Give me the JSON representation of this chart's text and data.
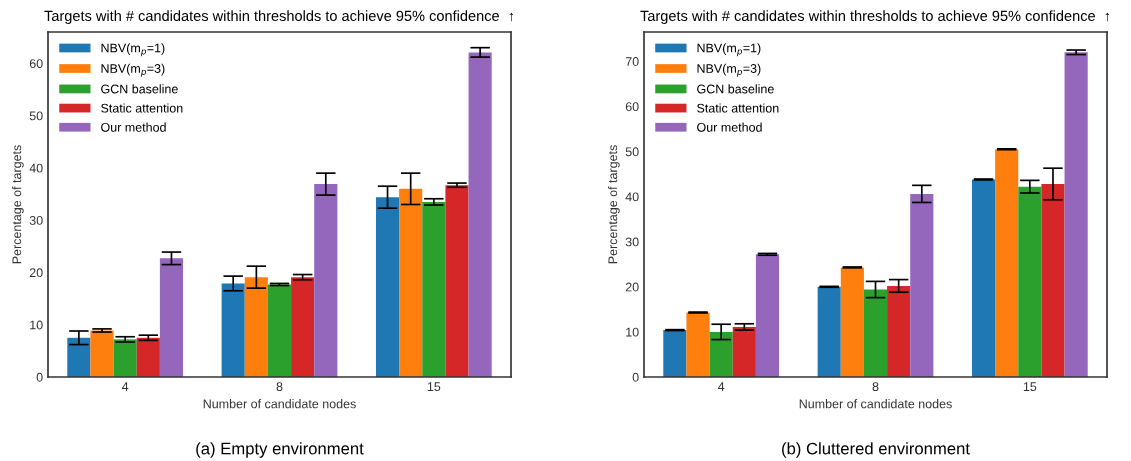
{
  "chart_data": [
    {
      "type": "bar",
      "title": "Targets with # candidates within thresholds to achieve 95% confidence  ↑",
      "xlabel": "Number of candidate nodes",
      "ylabel": "Percentage of targets",
      "categories": [
        "4",
        "8",
        "15"
      ],
      "ylim": [
        0,
        66
      ],
      "yticks": [
        0,
        10,
        20,
        30,
        40,
        50,
        60
      ],
      "grid": false,
      "legend": "top left",
      "annotations": [
        "(a) Empty environment"
      ],
      "series": [
        {
          "name": "NBV(m$_{p}$=1)",
          "color": "#1f77b4",
          "values": [
            7.5,
            17.9,
            34.4
          ],
          "errors": [
            1.3,
            1.4,
            2.1
          ]
        },
        {
          "name": "NBV(m$_{p}$=3)",
          "color": "#ff7f0e",
          "values": [
            8.9,
            19.1,
            36.0
          ],
          "errors": [
            0.3,
            2.1,
            3.0
          ]
        },
        {
          "name": "GCN baseline",
          "color": "#2ca02c",
          "values": [
            7.2,
            17.7,
            33.5
          ],
          "errors": [
            0.5,
            0.2,
            0.6
          ]
        },
        {
          "name": "Static attention",
          "color": "#d62728",
          "values": [
            7.5,
            19.1,
            36.7
          ],
          "errors": [
            0.5,
            0.5,
            0.4
          ]
        },
        {
          "name": "Our method",
          "color": "#9467bd",
          "values": [
            22.7,
            36.9,
            62.1
          ],
          "errors": [
            1.2,
            2.1,
            0.9
          ]
        }
      ]
    },
    {
      "type": "bar",
      "title": "Targets with # candidates within thresholds to achieve 95% confidence  ↑",
      "xlabel": "Number of candidate nodes",
      "ylabel": "Percentage of targets",
      "categories": [
        "4",
        "8",
        "15"
      ],
      "ylim": [
        0,
        76.5
      ],
      "yticks": [
        0,
        10,
        20,
        30,
        40,
        50,
        60,
        70
      ],
      "grid": false,
      "legend": "top left",
      "annotations": [
        "(b) Cluttered environment"
      ],
      "series": [
        {
          "name": "NBV(m$_{p}$=1)",
          "color": "#1f77b4",
          "values": [
            10.4,
            20.0,
            43.8
          ],
          "errors": [
            0.1,
            0.1,
            0.1
          ]
        },
        {
          "name": "NBV(m$_{p}$=3)",
          "color": "#ff7f0e",
          "values": [
            14.3,
            24.3,
            50.5
          ],
          "errors": [
            0.1,
            0.1,
            0.1
          ]
        },
        {
          "name": "GCN baseline",
          "color": "#2ca02c",
          "values": [
            10.0,
            19.4,
            42.2
          ],
          "errors": [
            1.7,
            1.8,
            1.4
          ]
        },
        {
          "name": "Static attention",
          "color": "#d62728",
          "values": [
            11.1,
            20.2,
            42.8
          ],
          "errors": [
            0.7,
            1.4,
            3.5
          ]
        },
        {
          "name": "Our method",
          "color": "#9467bd",
          "values": [
            27.2,
            40.6,
            72.0
          ],
          "errors": [
            0.2,
            1.9,
            0.5
          ]
        }
      ]
    }
  ]
}
